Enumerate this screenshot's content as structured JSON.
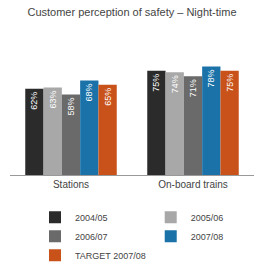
{
  "chart_data": {
    "type": "bar",
    "title": "Customer perception of safety – Night-time",
    "categories": [
      "Stations",
      "On-board trains"
    ],
    "series": [
      {
        "name": "2004/05",
        "color": "#2b2b2b",
        "values": [
          62,
          75
        ],
        "value_labels": [
          "62%",
          "75%"
        ]
      },
      {
        "name": "2005/06",
        "color": "#a8a8a8",
        "values": [
          63,
          74
        ],
        "value_labels": [
          "63%",
          "74%"
        ]
      },
      {
        "name": "2006/07",
        "color": "#6a6a6a",
        "values": [
          58,
          71
        ],
        "value_labels": [
          "58%",
          "71%"
        ]
      },
      {
        "name": "2007/08",
        "color": "#1a72a8",
        "values": [
          68,
          78
        ],
        "value_labels": [
          "68%",
          "78%"
        ]
      },
      {
        "name": "TARGET 2007/08",
        "color": "#c8521a",
        "values": [
          65,
          75
        ],
        "value_labels": [
          "65%",
          "75%"
        ]
      }
    ],
    "ylim": [
      0,
      100
    ],
    "grid": false,
    "legend": "bottom",
    "data_labels": true,
    "tick_labels": "x"
  }
}
